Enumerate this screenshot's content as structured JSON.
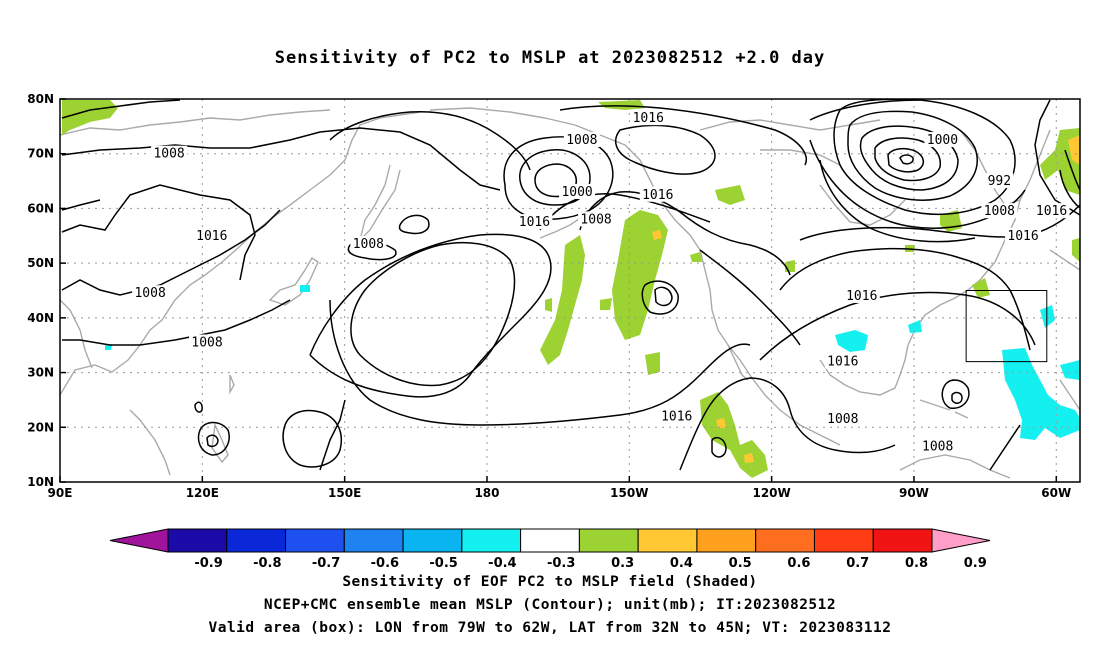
{
  "title": "Sensitivity of PC2 to MSLP at 2023082512 +2.0 day",
  "map": {
    "lat_ticks": [
      "80N",
      "70N",
      "60N",
      "50N",
      "40N",
      "30N",
      "20N",
      "10N"
    ],
    "lon_ticks": [
      "90E",
      "120E",
      "150E",
      "180",
      "150W",
      "120W",
      "90W",
      "60W"
    ],
    "contour_labels": [
      {
        "text": "1016",
        "lon": -146,
        "lat": 76.5
      },
      {
        "text": "1008",
        "lon": -160,
        "lat": 72.5
      },
      {
        "text": "1000",
        "lon": -84,
        "lat": 72.5
      },
      {
        "text": "1008",
        "lon": 113,
        "lat": 70
      },
      {
        "text": "992",
        "lon": -72,
        "lat": 65
      },
      {
        "text": "1000",
        "lon": -161,
        "lat": 63
      },
      {
        "text": "1016",
        "lon": -144,
        "lat": 62.5
      },
      {
        "text": "1008",
        "lon": -72,
        "lat": 59.5
      },
      {
        "text": "1016",
        "lon": -61,
        "lat": 59.5
      },
      {
        "text": "1008",
        "lon": -157,
        "lat": 58
      },
      {
        "text": "1016",
        "lon": -170,
        "lat": 57.5
      },
      {
        "text": "1016",
        "lon": 122,
        "lat": 55
      },
      {
        "text": "1016",
        "lon": -67,
        "lat": 55
      },
      {
        "text": "1008",
        "lon": 155,
        "lat": 53.5
      },
      {
        "text": "1008",
        "lon": 109,
        "lat": 44.5
      },
      {
        "text": "1016",
        "lon": -101,
        "lat": 44
      },
      {
        "text": "1008",
        "lon": 121,
        "lat": 35.5
      },
      {
        "text": "1016",
        "lon": -105,
        "lat": 32
      },
      {
        "text": "1016",
        "lon": -140,
        "lat": 22
      },
      {
        "text": "1008",
        "lon": -105,
        "lat": 21.5
      },
      {
        "text": "1008",
        "lon": -85,
        "lat": 16.5
      }
    ],
    "valid_box": {
      "lon_min": -79,
      "lon_max": -62,
      "lat_min": 32,
      "lat_max": 45
    }
  },
  "colorbar": {
    "labels": [
      "-0.9",
      "-0.8",
      "-0.7",
      "-0.6",
      "-0.5",
      "-0.4",
      "-0.3",
      "0.3",
      "0.4",
      "0.5",
      "0.6",
      "0.7",
      "0.8",
      "0.9"
    ],
    "colors": [
      "#a0149b",
      "#1b0aa8",
      "#0a28d8",
      "#1e50f0",
      "#1e82f0",
      "#0ab4f0",
      "#14f0f0",
      "#ffffff",
      "#9cd232",
      "#ffc832",
      "#ffa01e",
      "#ff6e1e",
      "#ff3c14",
      "#f01414",
      "#ff9ec8"
    ]
  },
  "caption": {
    "line1": "Sensitivity of EOF PC2 to MSLP field (Shaded)",
    "line2": "NCEP+CMC ensemble mean MSLP (Contour); unit(mb); IT:2023082512",
    "line3": "Valid area (box): LON from 79W to 62W, LAT from 32N to 45N; VT: 2023083112"
  }
}
